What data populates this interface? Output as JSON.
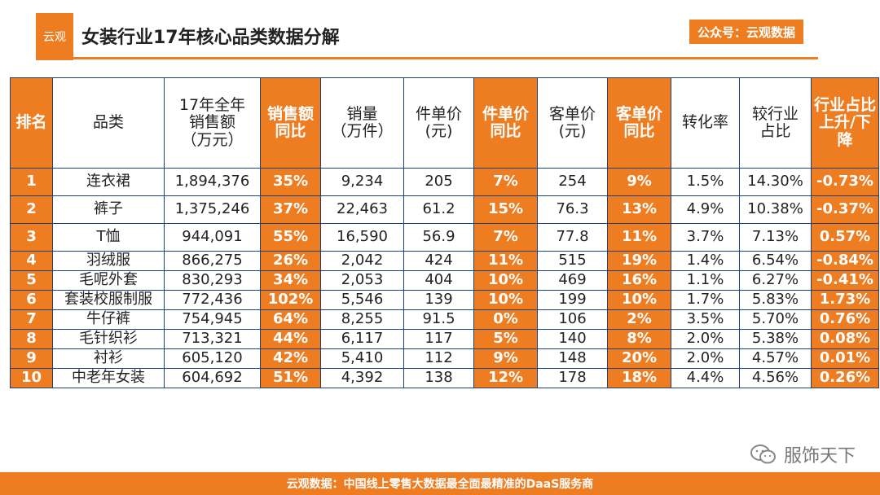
{
  "header": {
    "logo_text": "云观",
    "title": "女装行业17年核心品类数据分解",
    "wechat_tag": "公众号：云观数据"
  },
  "table": {
    "columns": [
      "排名",
      "品类",
      "17年全年\n销售额\n（万元）",
      "销售额\n同比",
      "销量\n（万件）",
      "件单价\n(元)",
      "件单价\n同比",
      "客单价\n(元)",
      "客单价\n同比",
      "转化率",
      "较行业\n占比",
      "行业占比\n上升/下降"
    ],
    "rows": [
      [
        "1",
        "连衣裙",
        "1,894,376",
        "35%",
        "9,234",
        "205",
        "7%",
        "254",
        "9%",
        "1.5%",
        "14.30%",
        "-0.73%"
      ],
      [
        "2",
        "裤子",
        "1,375,246",
        "37%",
        "22,463",
        "61.2",
        "15%",
        "76.3",
        "13%",
        "4.9%",
        "10.38%",
        "-0.37%"
      ],
      [
        "3",
        "T恤",
        "944,091",
        "55%",
        "16,590",
        "56.9",
        "7%",
        "77.8",
        "11%",
        "3.7%",
        "7.13%",
        "0.57%"
      ],
      [
        "4",
        "羽绒服",
        "866,275",
        "26%",
        "2,042",
        "424",
        "11%",
        "515",
        "19%",
        "1.4%",
        "6.54%",
        "-0.84%"
      ],
      [
        "5",
        "毛呢外套",
        "830,293",
        "34%",
        "2,053",
        "404",
        "10%",
        "469",
        "16%",
        "1.1%",
        "6.27%",
        "-0.41%"
      ],
      [
        "6",
        "套装校服制服",
        "772,436",
        "102%",
        "5,546",
        "139",
        "10%",
        "199",
        "10%",
        "1.7%",
        "5.83%",
        "1.73%"
      ],
      [
        "7",
        "牛仔裤",
        "754,945",
        "64%",
        "8,255",
        "91.5",
        "0%",
        "106",
        "2%",
        "3.5%",
        "5.70%",
        "0.76%"
      ],
      [
        "8",
        "毛针织衫",
        "713,321",
        "44%",
        "6,117",
        "117",
        "5%",
        "140",
        "8%",
        "2.0%",
        "5.38%",
        "0.08%"
      ],
      [
        "9",
        "衬衫",
        "605,120",
        "42%",
        "5,410",
        "112",
        "9%",
        "148",
        "20%",
        "2.0%",
        "4.57%",
        "0.01%"
      ],
      [
        "10",
        "中老年女装",
        "604,692",
        "51%",
        "4,392",
        "138",
        "12%",
        "178",
        "18%",
        "4.4%",
        "4.56%",
        "0.26%"
      ]
    ]
  },
  "watermark": {
    "text": "服饰天下",
    "icon": "wechat-icon"
  },
  "footer": {
    "text": "云观数据：中国线上零售大数据最全面最精准的DaaS服务商"
  },
  "colors": {
    "accent": "#ee7d22",
    "border": "#1e3f7a"
  }
}
